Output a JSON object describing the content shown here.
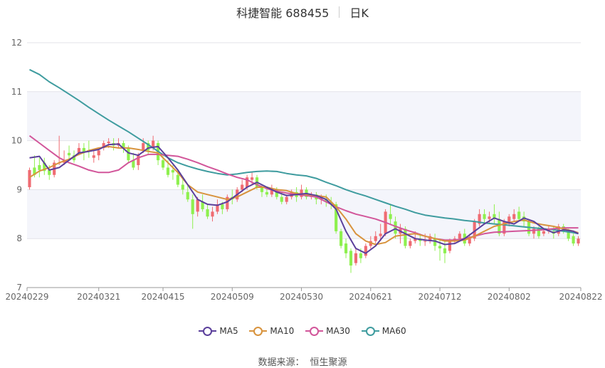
{
  "header": {
    "title": "科捷智能 688455",
    "period": "日K"
  },
  "source": {
    "label": "数据来源：",
    "name": "恒生聚源"
  },
  "colors": {
    "up": "#ef6c73",
    "down": "#8ef04f",
    "ma5": "#5b3f9b",
    "ma10": "#d8933d",
    "ma30": "#d2569a",
    "ma60": "#3f9c9f"
  },
  "chart_data": {
    "type": "candlestick",
    "title": "科捷智能 688455 日K",
    "ylim": [
      7,
      12
    ],
    "yticks": [
      7,
      8,
      9,
      10,
      11,
      12
    ],
    "xtick_labels": [
      "20240229",
      "20240321",
      "20240415",
      "20240509",
      "20240530",
      "20240621",
      "20240712",
      "20240802",
      "20240822"
    ],
    "xtick_index": [
      0,
      14,
      27,
      41,
      55,
      69,
      83,
      97,
      111
    ],
    "legend": [
      "MA5",
      "MA10",
      "MA30",
      "MA60"
    ],
    "ohlc": [
      [
        9.05,
        9.45,
        9.4,
        9.0
      ],
      [
        9.45,
        9.7,
        9.3,
        9.25
      ],
      [
        9.5,
        9.65,
        9.4,
        9.25
      ],
      [
        9.55,
        9.65,
        9.38,
        9.3
      ],
      [
        9.4,
        9.5,
        9.3,
        9.2
      ],
      [
        9.3,
        9.6,
        9.55,
        9.25
      ],
      [
        9.55,
        10.1,
        9.55,
        9.5
      ],
      [
        9.55,
        9.8,
        9.6,
        9.5
      ],
      [
        9.75,
        9.9,
        9.7,
        9.6
      ],
      [
        9.7,
        9.8,
        9.6,
        9.55
      ],
      [
        9.75,
        9.95,
        9.85,
        9.7
      ],
      [
        9.85,
        9.95,
        9.75,
        9.6
      ],
      [
        9.8,
        10.0,
        9.78,
        9.65
      ],
      [
        9.65,
        9.8,
        9.7,
        9.55
      ],
      [
        9.7,
        9.85,
        9.8,
        9.6
      ],
      [
        9.85,
        10.0,
        9.95,
        9.8
      ],
      [
        9.95,
        10.05,
        9.98,
        9.85
      ],
      [
        9.95,
        10.05,
        9.9,
        9.8
      ],
      [
        9.9,
        10.05,
        9.95,
        9.85
      ],
      [
        9.95,
        10.0,
        9.85,
        9.75
      ],
      [
        9.85,
        9.9,
        9.6,
        9.55
      ],
      [
        9.6,
        9.75,
        9.45,
        9.4
      ],
      [
        9.5,
        9.75,
        9.7,
        9.4
      ],
      [
        9.8,
        10.05,
        9.95,
        9.75
      ],
      [
        9.95,
        10.0,
        9.8,
        9.7
      ],
      [
        9.85,
        10.1,
        10.0,
        9.8
      ],
      [
        9.95,
        10.0,
        9.6,
        9.5
      ],
      [
        9.6,
        9.7,
        9.45,
        9.4
      ],
      [
        9.45,
        9.6,
        9.3,
        9.25
      ],
      [
        9.4,
        9.5,
        9.35,
        9.2
      ],
      [
        9.3,
        9.4,
        9.1,
        9.05
      ],
      [
        9.1,
        9.25,
        9.0,
        8.9
      ],
      [
        8.95,
        9.1,
        8.8,
        8.75
      ],
      [
        8.8,
        8.9,
        8.5,
        8.2
      ],
      [
        8.55,
        8.85,
        8.8,
        8.45
      ],
      [
        8.75,
        8.9,
        8.6,
        8.55
      ],
      [
        8.6,
        8.7,
        8.45,
        8.4
      ],
      [
        8.45,
        8.65,
        8.55,
        8.35
      ],
      [
        8.55,
        8.8,
        8.7,
        8.5
      ],
      [
        8.7,
        8.75,
        8.6,
        8.5
      ],
      [
        8.6,
        8.9,
        8.85,
        8.55
      ],
      [
        8.85,
        9.0,
        8.8,
        8.7
      ],
      [
        8.8,
        9.05,
        9.0,
        8.75
      ],
      [
        9.0,
        9.2,
        9.1,
        8.95
      ],
      [
        9.05,
        9.3,
        9.25,
        9.0
      ],
      [
        9.2,
        9.35,
        9.25,
        9.1
      ],
      [
        9.25,
        9.3,
        9.05,
        9.0
      ],
      [
        9.05,
        9.1,
        8.95,
        8.85
      ],
      [
        8.95,
        9.05,
        8.9,
        8.85
      ],
      [
        8.9,
        9.1,
        9.0,
        8.85
      ],
      [
        9.0,
        9.05,
        8.85,
        8.8
      ],
      [
        8.85,
        8.95,
        8.75,
        8.7
      ],
      [
        8.75,
        8.9,
        8.85,
        8.7
      ],
      [
        8.85,
        9.0,
        8.95,
        8.8
      ],
      [
        8.95,
        9.05,
        8.85,
        8.75
      ],
      [
        8.85,
        9.1,
        9.0,
        8.8
      ],
      [
        9.0,
        9.05,
        8.85,
        8.8
      ],
      [
        8.85,
        8.95,
        8.9,
        8.8
      ],
      [
        8.9,
        8.95,
        8.8,
        8.7
      ],
      [
        8.8,
        8.9,
        8.85,
        8.7
      ],
      [
        8.8,
        8.9,
        8.75,
        8.65
      ],
      [
        8.75,
        8.85,
        8.7,
        8.6
      ],
      [
        8.7,
        8.75,
        8.15,
        8.1
      ],
      [
        8.15,
        8.2,
        7.85,
        7.8
      ],
      [
        7.9,
        8.0,
        7.7,
        7.6
      ],
      [
        7.75,
        7.8,
        7.45,
        7.3
      ],
      [
        7.5,
        7.8,
        7.7,
        7.45
      ],
      [
        7.7,
        7.8,
        7.6,
        7.5
      ],
      [
        7.65,
        7.9,
        7.85,
        7.6
      ],
      [
        7.85,
        8.05,
        7.95,
        7.8
      ],
      [
        7.95,
        8.15,
        8.05,
        7.9
      ],
      [
        8.05,
        8.3,
        8.1,
        7.95
      ],
      [
        8.1,
        8.6,
        8.55,
        8.05
      ],
      [
        8.5,
        8.7,
        8.4,
        8.3
      ],
      [
        8.35,
        8.45,
        8.1,
        8.0
      ],
      [
        8.1,
        8.3,
        8.2,
        7.9
      ],
      [
        8.2,
        8.25,
        7.85,
        7.8
      ],
      [
        7.85,
        8.0,
        7.95,
        7.8
      ],
      [
        7.95,
        8.15,
        8.0,
        7.9
      ],
      [
        8.0,
        8.1,
        7.95,
        7.85
      ],
      [
        7.95,
        8.1,
        7.95,
        7.85
      ],
      [
        7.95,
        8.1,
        8.05,
        7.9
      ],
      [
        8.0,
        8.1,
        7.85,
        7.75
      ],
      [
        7.85,
        8.0,
        7.8,
        7.55
      ],
      [
        7.8,
        7.95,
        7.7,
        7.5
      ],
      [
        7.75,
        8.0,
        7.95,
        7.7
      ],
      [
        7.95,
        8.05,
        8.0,
        7.9
      ],
      [
        8.0,
        8.15,
        8.1,
        7.95
      ],
      [
        8.1,
        8.2,
        7.9,
        7.85
      ],
      [
        7.9,
        8.1,
        8.0,
        7.85
      ],
      [
        8.0,
        8.4,
        8.35,
        7.95
      ],
      [
        8.3,
        8.6,
        8.5,
        8.25
      ],
      [
        8.5,
        8.6,
        8.4,
        8.3
      ],
      [
        8.4,
        8.55,
        8.45,
        8.3
      ],
      [
        8.5,
        8.7,
        8.4,
        8.3
      ],
      [
        8.4,
        8.55,
        8.1,
        8.05
      ],
      [
        8.1,
        8.4,
        8.35,
        8.05
      ],
      [
        8.3,
        8.5,
        8.45,
        8.25
      ],
      [
        8.4,
        8.6,
        8.5,
        8.35
      ],
      [
        8.55,
        8.65,
        8.4,
        8.35
      ],
      [
        8.45,
        8.55,
        8.35,
        8.25
      ],
      [
        8.35,
        8.4,
        8.1,
        8.05
      ],
      [
        8.1,
        8.25,
        8.2,
        8.0
      ],
      [
        8.2,
        8.25,
        8.05,
        8.0
      ],
      [
        8.1,
        8.2,
        8.15,
        8.05
      ],
      [
        8.15,
        8.25,
        8.2,
        8.1
      ],
      [
        8.15,
        8.25,
        8.1,
        8.0
      ],
      [
        8.1,
        8.3,
        8.25,
        8.05
      ],
      [
        8.25,
        8.3,
        8.15,
        8.1
      ],
      [
        8.15,
        8.2,
        8.0,
        7.95
      ],
      [
        8.05,
        8.1,
        7.9,
        7.85
      ],
      [
        7.9,
        8.05,
        8.0,
        7.85
      ]
    ],
    "ma5": [
      [
        0,
        9.65
      ],
      [
        2,
        9.68
      ],
      [
        4,
        9.4
      ],
      [
        6,
        9.45
      ],
      [
        8,
        9.6
      ],
      [
        10,
        9.75
      ],
      [
        12,
        9.78
      ],
      [
        14,
        9.82
      ],
      [
        16,
        9.92
      ],
      [
        18,
        9.93
      ],
      [
        20,
        9.75
      ],
      [
        22,
        9.7
      ],
      [
        24,
        9.85
      ],
      [
        26,
        9.88
      ],
      [
        28,
        9.65
      ],
      [
        30,
        9.4
      ],
      [
        32,
        9.1
      ],
      [
        34,
        8.8
      ],
      [
        36,
        8.7
      ],
      [
        38,
        8.68
      ],
      [
        40,
        8.75
      ],
      [
        42,
        8.9
      ],
      [
        44,
        9.05
      ],
      [
        46,
        9.15
      ],
      [
        48,
        9.05
      ],
      [
        50,
        8.95
      ],
      [
        52,
        8.88
      ],
      [
        54,
        8.9
      ],
      [
        56,
        8.92
      ],
      [
        58,
        8.88
      ],
      [
        60,
        8.8
      ],
      [
        62,
        8.6
      ],
      [
        64,
        8.15
      ],
      [
        66,
        7.8
      ],
      [
        68,
        7.7
      ],
      [
        70,
        7.85
      ],
      [
        72,
        8.1
      ],
      [
        74,
        8.2
      ],
      [
        76,
        8.1
      ],
      [
        78,
        8.0
      ],
      [
        80,
        7.97
      ],
      [
        82,
        7.95
      ],
      [
        84,
        7.88
      ],
      [
        86,
        7.9
      ],
      [
        88,
        8.0
      ],
      [
        90,
        8.15
      ],
      [
        92,
        8.3
      ],
      [
        94,
        8.42
      ],
      [
        96,
        8.35
      ],
      [
        98,
        8.3
      ],
      [
        100,
        8.42
      ],
      [
        102,
        8.35
      ],
      [
        104,
        8.2
      ],
      [
        106,
        8.12
      ],
      [
        108,
        8.18
      ],
      [
        110,
        8.15
      ],
      [
        111,
        8.1
      ]
    ],
    "ma10": [
      [
        0,
        9.25
      ],
      [
        2,
        9.38
      ],
      [
        4,
        9.45
      ],
      [
        6,
        9.55
      ],
      [
        8,
        9.62
      ],
      [
        10,
        9.72
      ],
      [
        12,
        9.8
      ],
      [
        14,
        9.85
      ],
      [
        16,
        9.88
      ],
      [
        18,
        9.85
      ],
      [
        20,
        9.85
      ],
      [
        22,
        9.82
      ],
      [
        24,
        9.78
      ],
      [
        26,
        9.75
      ],
      [
        28,
        9.55
      ],
      [
        30,
        9.35
      ],
      [
        32,
        9.1
      ],
      [
        34,
        8.95
      ],
      [
        36,
        8.9
      ],
      [
        38,
        8.85
      ],
      [
        40,
        8.8
      ],
      [
        42,
        8.85
      ],
      [
        44,
        8.95
      ],
      [
        46,
        9.05
      ],
      [
        48,
        9.05
      ],
      [
        50,
        9.0
      ],
      [
        52,
        8.98
      ],
      [
        54,
        8.92
      ],
      [
        56,
        8.9
      ],
      [
        58,
        8.88
      ],
      [
        60,
        8.85
      ],
      [
        62,
        8.65
      ],
      [
        64,
        8.4
      ],
      [
        66,
        8.1
      ],
      [
        68,
        7.95
      ],
      [
        70,
        7.88
      ],
      [
        72,
        7.92
      ],
      [
        74,
        8.05
      ],
      [
        76,
        8.08
      ],
      [
        78,
        8.1
      ],
      [
        80,
        8.05
      ],
      [
        82,
        8.0
      ],
      [
        84,
        7.95
      ],
      [
        86,
        7.95
      ],
      [
        88,
        7.97
      ],
      [
        90,
        8.05
      ],
      [
        92,
        8.15
      ],
      [
        94,
        8.25
      ],
      [
        96,
        8.3
      ],
      [
        98,
        8.35
      ],
      [
        100,
        8.38
      ],
      [
        102,
        8.32
      ],
      [
        104,
        8.28
      ],
      [
        106,
        8.25
      ],
      [
        108,
        8.2
      ],
      [
        110,
        8.15
      ],
      [
        111,
        8.12
      ]
    ],
    "ma30": [
      [
        0,
        10.1
      ],
      [
        2,
        9.95
      ],
      [
        4,
        9.8
      ],
      [
        6,
        9.65
      ],
      [
        8,
        9.55
      ],
      [
        10,
        9.48
      ],
      [
        12,
        9.4
      ],
      [
        14,
        9.35
      ],
      [
        16,
        9.35
      ],
      [
        18,
        9.4
      ],
      [
        20,
        9.55
      ],
      [
        22,
        9.65
      ],
      [
        24,
        9.72
      ],
      [
        26,
        9.72
      ],
      [
        28,
        9.7
      ],
      [
        30,
        9.68
      ],
      [
        32,
        9.62
      ],
      [
        34,
        9.55
      ],
      [
        36,
        9.47
      ],
      [
        38,
        9.4
      ],
      [
        40,
        9.32
      ],
      [
        42,
        9.25
      ],
      [
        44,
        9.2
      ],
      [
        46,
        9.1
      ],
      [
        48,
        9.02
      ],
      [
        50,
        8.97
      ],
      [
        52,
        8.93
      ],
      [
        54,
        8.9
      ],
      [
        56,
        8.88
      ],
      [
        58,
        8.85
      ],
      [
        60,
        8.75
      ],
      [
        62,
        8.65
      ],
      [
        64,
        8.57
      ],
      [
        66,
        8.5
      ],
      [
        68,
        8.45
      ],
      [
        70,
        8.4
      ],
      [
        72,
        8.33
      ],
      [
        74,
        8.25
      ],
      [
        76,
        8.18
      ],
      [
        78,
        8.12
      ],
      [
        80,
        8.05
      ],
      [
        82,
        8.0
      ],
      [
        84,
        7.97
      ],
      [
        86,
        7.97
      ],
      [
        88,
        8.0
      ],
      [
        90,
        8.05
      ],
      [
        92,
        8.1
      ],
      [
        94,
        8.13
      ],
      [
        96,
        8.14
      ],
      [
        98,
        8.15
      ],
      [
        100,
        8.16
      ],
      [
        102,
        8.17
      ],
      [
        104,
        8.18
      ],
      [
        106,
        8.2
      ],
      [
        108,
        8.22
      ],
      [
        110,
        8.22
      ],
      [
        111,
        8.22
      ]
    ],
    "ma60": [
      [
        0,
        11.45
      ],
      [
        2,
        11.35
      ],
      [
        4,
        11.2
      ],
      [
        6,
        11.08
      ],
      [
        8,
        10.95
      ],
      [
        10,
        10.82
      ],
      [
        12,
        10.68
      ],
      [
        14,
        10.55
      ],
      [
        16,
        10.42
      ],
      [
        18,
        10.3
      ],
      [
        20,
        10.18
      ],
      [
        22,
        10.05
      ],
      [
        24,
        9.92
      ],
      [
        26,
        9.78
      ],
      [
        28,
        9.65
      ],
      [
        30,
        9.55
      ],
      [
        32,
        9.48
      ],
      [
        34,
        9.42
      ],
      [
        36,
        9.37
      ],
      [
        38,
        9.33
      ],
      [
        40,
        9.3
      ],
      [
        42,
        9.32
      ],
      [
        44,
        9.35
      ],
      [
        46,
        9.37
      ],
      [
        48,
        9.38
      ],
      [
        50,
        9.37
      ],
      [
        52,
        9.33
      ],
      [
        54,
        9.3
      ],
      [
        56,
        9.28
      ],
      [
        58,
        9.23
      ],
      [
        60,
        9.15
      ],
      [
        62,
        9.08
      ],
      [
        64,
        9.0
      ],
      [
        66,
        8.93
      ],
      [
        68,
        8.87
      ],
      [
        70,
        8.8
      ],
      [
        72,
        8.73
      ],
      [
        74,
        8.66
      ],
      [
        76,
        8.6
      ],
      [
        78,
        8.53
      ],
      [
        80,
        8.48
      ],
      [
        82,
        8.45
      ],
      [
        84,
        8.42
      ],
      [
        86,
        8.4
      ],
      [
        88,
        8.37
      ],
      [
        90,
        8.35
      ],
      [
        92,
        8.32
      ],
      [
        94,
        8.3
      ],
      [
        96,
        8.28
      ],
      [
        98,
        8.26
      ],
      [
        100,
        8.24
      ],
      [
        102,
        8.22
      ],
      [
        104,
        8.2
      ],
      [
        106,
        8.18
      ],
      [
        108,
        8.15
      ],
      [
        110,
        8.12
      ],
      [
        111,
        8.1
      ]
    ]
  }
}
